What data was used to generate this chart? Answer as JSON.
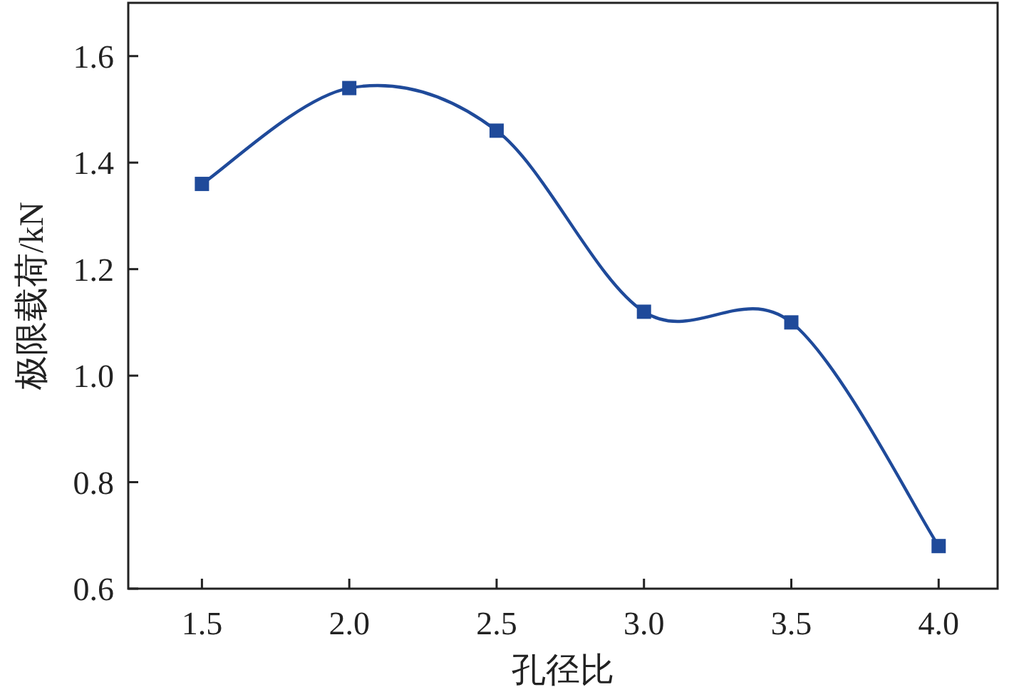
{
  "chart_data": {
    "type": "line",
    "xlabel": "孔径比",
    "ylabel": "极限载荷/kN",
    "x": [
      1.5,
      2.0,
      2.5,
      3.0,
      3.5,
      4.0
    ],
    "series": [
      {
        "color": "#1f4a9a",
        "values": [
          1.36,
          1.54,
          1.46,
          1.12,
          1.1,
          0.68
        ]
      }
    ],
    "xlim": [
      1.25,
      4.2
    ],
    "ylim": [
      0.6,
      1.7
    ],
    "xticks": [
      1.5,
      {
        "value": 2,
        "label": "2.0"
      },
      2.5,
      {
        "value": 3,
        "label": "3.0"
      },
      3.5,
      {
        "value": 4,
        "label": "4.0"
      }
    ],
    "yticks": [
      {
        "value": 0.6,
        "label": "0.6"
      },
      {
        "value": 0.8,
        "label": "0.8"
      },
      {
        "value": 1,
        "label": "1.0"
      },
      {
        "value": 1.2,
        "label": "1.2"
      },
      {
        "value": 1.4,
        "label": "1.4"
      },
      {
        "value": 1.6,
        "label": "1.6"
      }
    ],
    "marker": "square",
    "line_style": "solid",
    "grid": false
  }
}
